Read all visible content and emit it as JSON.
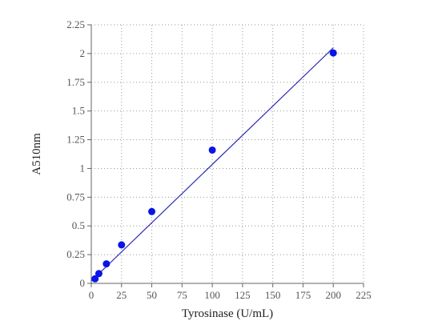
{
  "chart_data": {
    "type": "scatter",
    "xlabel": "Tyrosinase (U/mL)",
    "ylabel": "A510nm",
    "xlim": [
      0,
      225
    ],
    "ylim": [
      0,
      2.25
    ],
    "xticks": [
      "0",
      "25",
      "50",
      "75",
      "100",
      "125",
      "150",
      "175",
      "200",
      "225"
    ],
    "yticks": [
      "0",
      "0.25",
      "0.5",
      "0.75",
      "1",
      "1.25",
      "1.5",
      "1.75",
      "2",
      "2.25"
    ],
    "grid": true,
    "series": [
      {
        "x": [
          3.125,
          6.25,
          12.5,
          25,
          50,
          100,
          200
        ],
        "y": [
          0.04,
          0.085,
          0.17,
          0.335,
          0.625,
          1.16,
          2.005
        ]
      }
    ],
    "fit_line": {
      "x": [
        0,
        200
      ],
      "y": [
        0.02,
        2.05
      ]
    },
    "colors": {
      "points": "#0a14e6",
      "line": "#2b2bb8",
      "axis": "#666666",
      "grid": "#9a9a9a"
    }
  }
}
